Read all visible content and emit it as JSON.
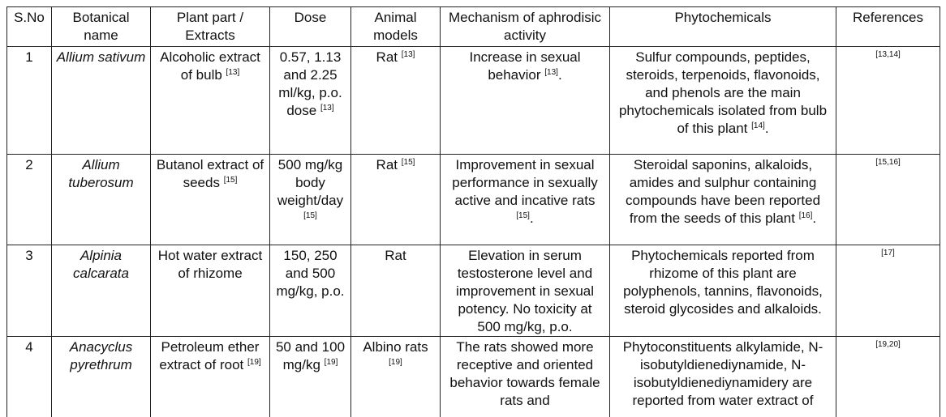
{
  "table": {
    "header": [
      "S.No",
      "Botanical name",
      "Plant part / Extracts",
      "Dose",
      "Animal models",
      "Mechanism of aphrodisic activity",
      "Phytochemicals",
      "References"
    ],
    "rows": [
      [
        "1",
        "Allium sativum",
        {
          "text": "Alcoholic extract of bulb",
          "ref": "[13]"
        },
        {
          "text": "0.57, 1.13 and 2.25 ml/kg, p.o. dose",
          "ref": "[13]"
        },
        {
          "text": "Rat",
          "ref": "[13]"
        },
        {
          "text": "Increase in  sexual behavior",
          "ref": "[13]",
          "after": "."
        },
        {
          "text": "Sulfur compounds, peptides, steroids, terpenoids, flavonoids, and phenols are the main phytochemicals isolated from bulb of this plant",
          "ref": "[14]",
          "after": "."
        },
        {
          "ref": "[13,14]"
        }
      ],
      [
        "2",
        "Allium tuberosum",
        {
          "text": "Butanol extract of seeds",
          "ref": "[15]"
        },
        {
          "text": "500 mg/kg body weight/day",
          "ref": "[15]"
        },
        {
          "text": "Rat",
          "ref": "[15]"
        },
        {
          "text": "Improvement in sexual performance in sexually active and incative rats",
          "ref": "[15]",
          "after": "."
        },
        {
          "text": "Steroidal saponins, alkaloids, amides and sulphur containing compounds have been reported from the seeds of this plant",
          "ref": "[16]",
          "after": "."
        },
        {
          "ref": "[15,16]"
        }
      ],
      [
        "3",
        "Alpinia calcarata",
        "Hot water extract of rhizome",
        "150, 250 and 500 mg/kg, p.o.",
        "Rat",
        "Elevation in serum testosterone level and improvement in sexual potency. No toxicity at 500 mg/kg, p.o.",
        "Phytochemicals reported from rhizome of this plant are polyphenols, tannins, flavonoids, steroid glycosides and alkaloids.",
        {
          "ref": "[17]"
        }
      ],
      [
        "4",
        "Anacyclus pyrethrum",
        {
          "text": "Petroleum ether extract of root",
          "ref": "[19]"
        },
        {
          "text": "50 and 100 mg/kg",
          "ref": "[19]"
        },
        {
          "text": "Albino rats",
          "ref": "[19]"
        },
        "The rats showed more receptive and oriented behavior towards female rats and",
        "Phytoconstituents alkylamide, N-isobutyldienediynamide, N-isobutyldienediynamidery are reported from water extract of",
        {
          "ref": "[19,20]"
        }
      ]
    ]
  }
}
